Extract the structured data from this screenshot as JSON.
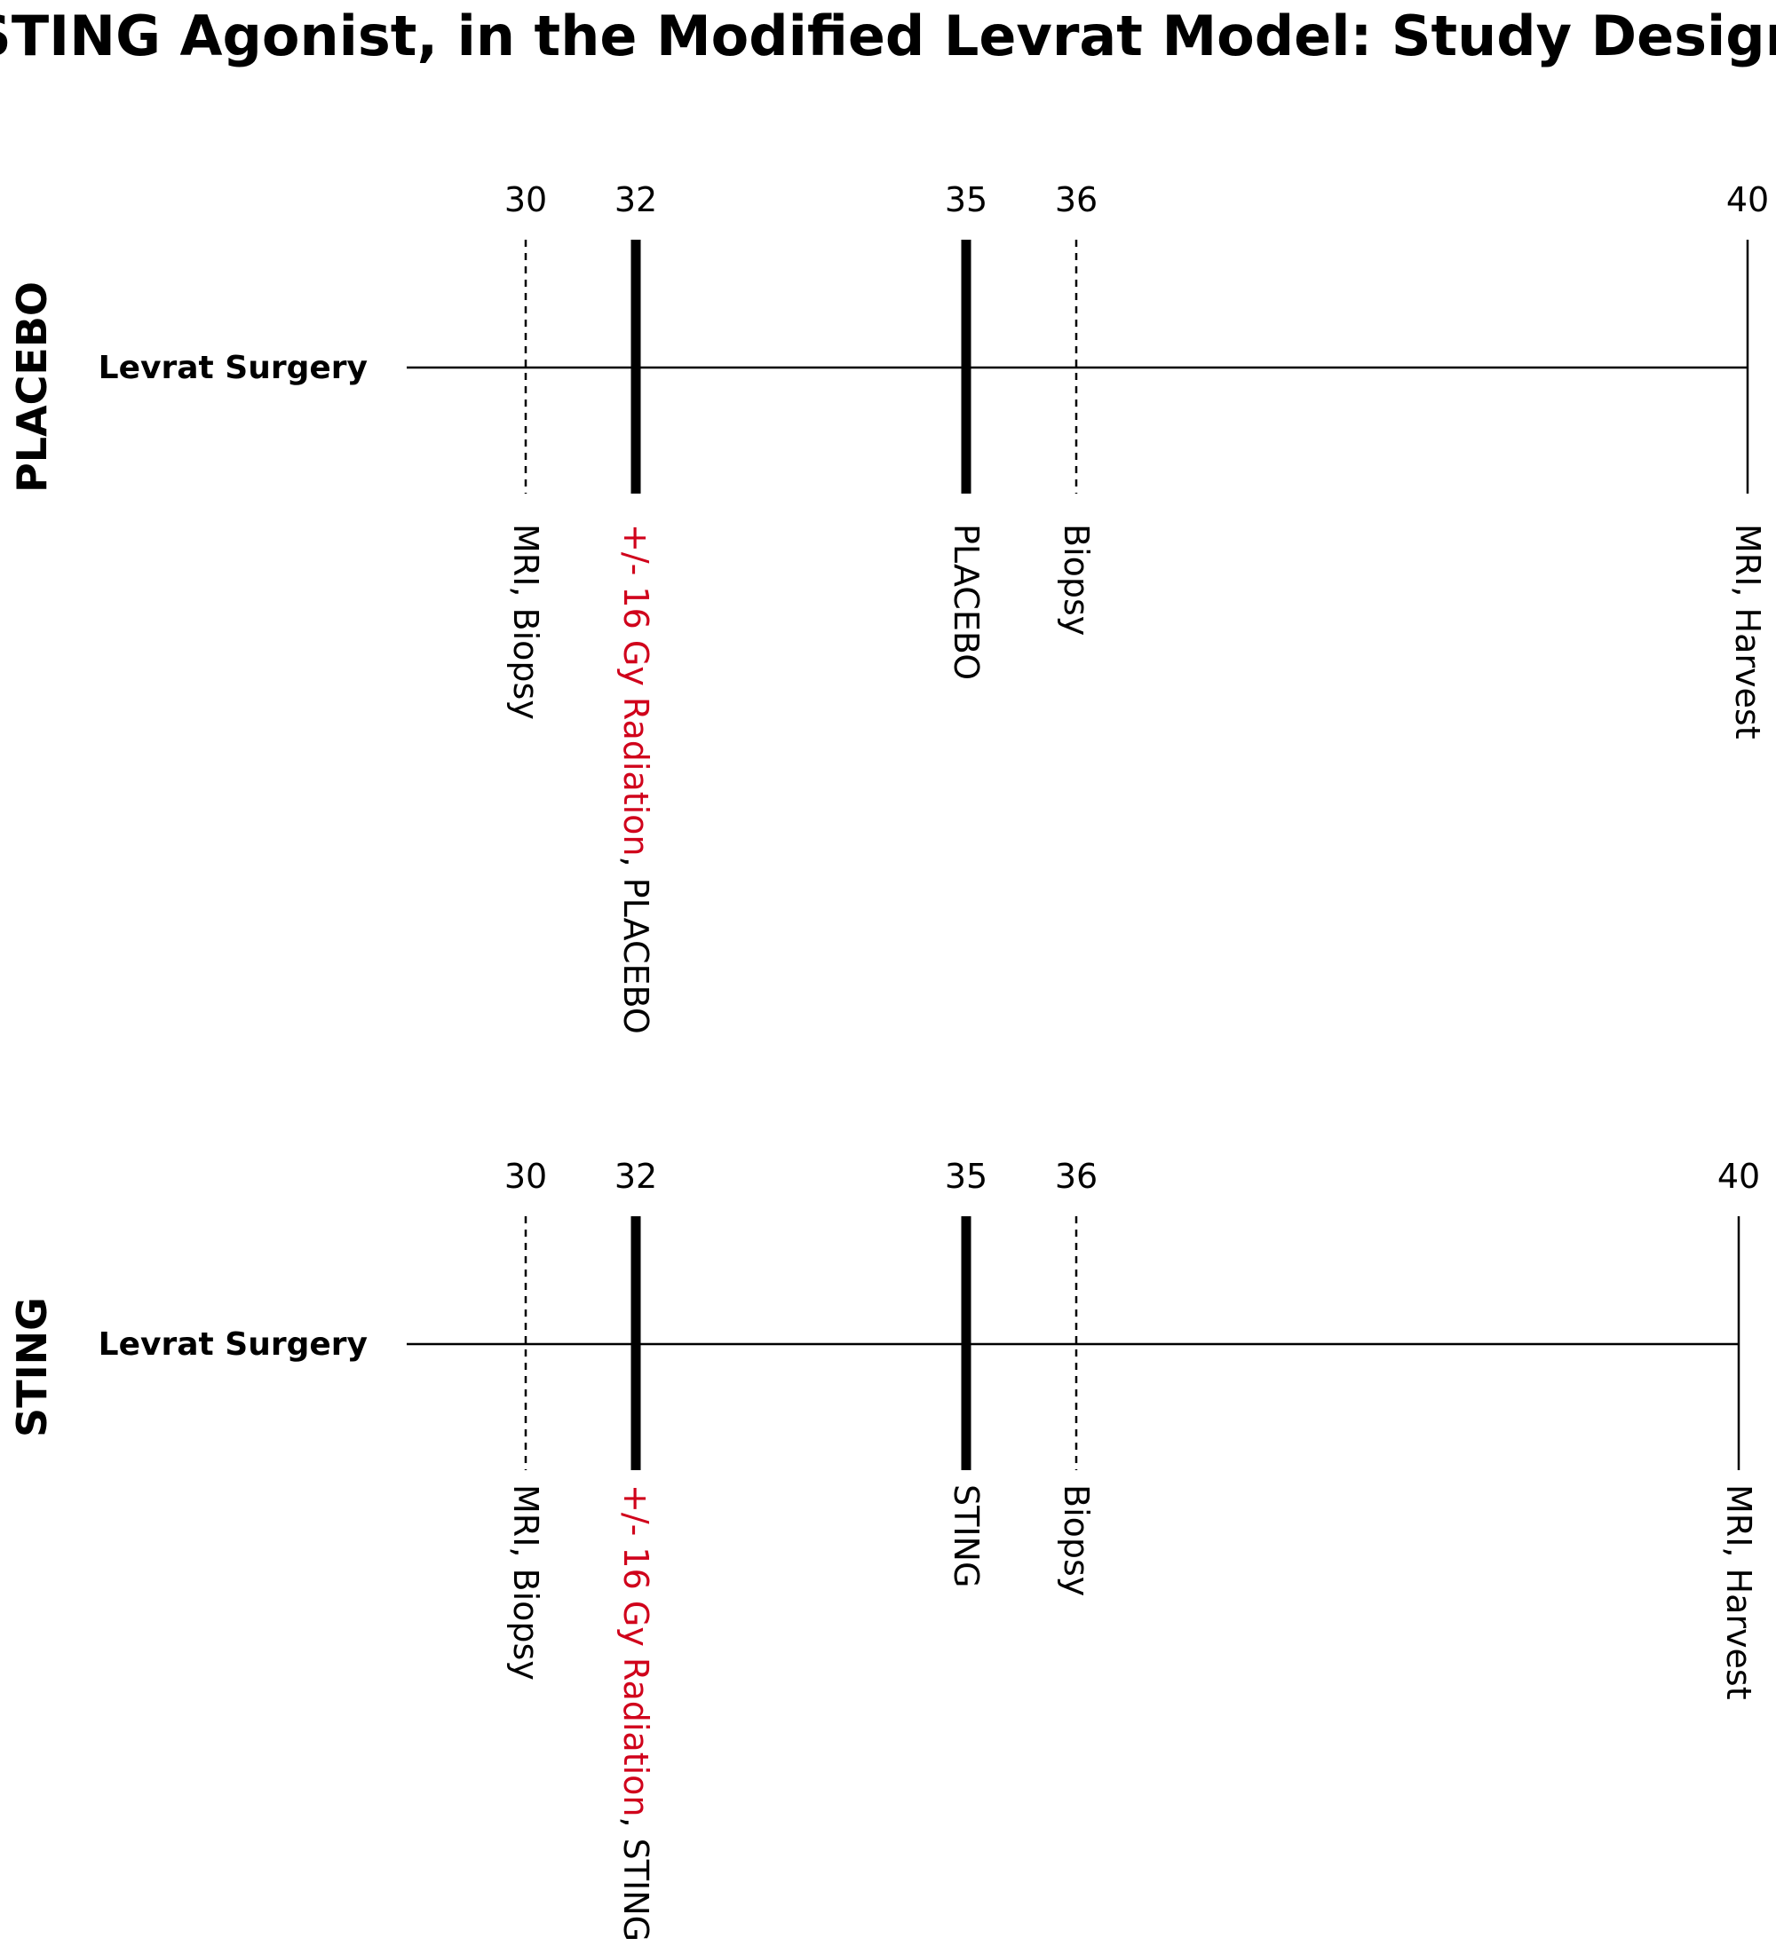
{
  "title": "STING Agonist, in the Modified Levrat Model: Study Design",
  "colors": {
    "text": "#000000",
    "highlight": "#d0021b",
    "line": "#000000"
  },
  "panels": [
    {
      "group": "PLACEBO",
      "start_label": "Levrat Surgery",
      "timepoints": [
        {
          "tick": "30",
          "style": "dashed",
          "label_parts": [
            {
              "text": "MRI, Biopsy",
              "highlight": false
            }
          ]
        },
        {
          "tick": "32",
          "style": "thick",
          "label_parts": [
            {
              "text": "+/- 16 Gy Radiation",
              "highlight": true
            },
            {
              "text": ", PLACEBO",
              "highlight": false
            }
          ]
        },
        {
          "tick": "35",
          "style": "thick",
          "label_parts": [
            {
              "text": "PLACEBO",
              "highlight": false
            }
          ]
        },
        {
          "tick": "36",
          "style": "dashed",
          "label_parts": [
            {
              "text": "Biopsy",
              "highlight": false
            }
          ]
        },
        {
          "tick": "40",
          "style": "thin",
          "label_parts": [
            {
              "text": "MRI, Harvest",
              "highlight": false
            }
          ]
        }
      ]
    },
    {
      "group": "STING",
      "start_label": "Levrat Surgery",
      "timepoints": [
        {
          "tick": "30",
          "style": "dashed",
          "label_parts": [
            {
              "text": "MRI, Biopsy",
              "highlight": false
            }
          ]
        },
        {
          "tick": "32",
          "style": "thick",
          "label_parts": [
            {
              "text": "+/- 16 Gy Radiation",
              "highlight": true
            },
            {
              "text": ", STING",
              "highlight": false
            }
          ]
        },
        {
          "tick": "35",
          "style": "thick",
          "label_parts": [
            {
              "text": "STING",
              "highlight": false
            }
          ]
        },
        {
          "tick": "36",
          "style": "dashed",
          "label_parts": [
            {
              "text": "Biopsy",
              "highlight": false
            }
          ]
        },
        {
          "tick": "40",
          "style": "thin",
          "label_parts": [
            {
              "text": "MRI, Harvest",
              "highlight": false
            }
          ]
        }
      ]
    }
  ]
}
